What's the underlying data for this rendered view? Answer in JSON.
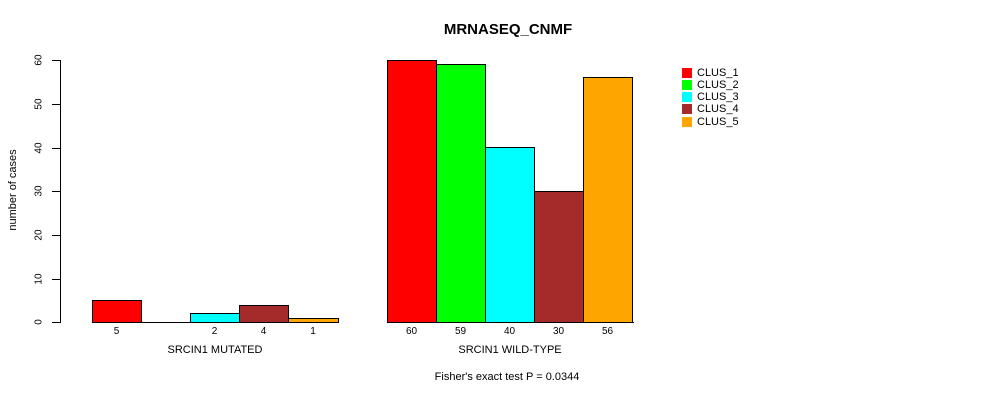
{
  "title": "MRNASEQ_CNMF",
  "y_axis": {
    "label": "number of cases",
    "ticks": [
      "0",
      "10",
      "20",
      "30",
      "40",
      "50",
      "60"
    ]
  },
  "chart_data": {
    "type": "bar",
    "title": "MRNASEQ_CNMF",
    "xlabel": "",
    "ylabel": "number of cases",
    "ylim": [
      0,
      60
    ],
    "grid": false,
    "legend_position": "right",
    "categories": [
      "SRCIN1 MUTATED",
      "SRCIN1 WILD-TYPE"
    ],
    "series": [
      {
        "name": "CLUS_1",
        "color": "#FF0000",
        "values": [
          5,
          60
        ]
      },
      {
        "name": "CLUS_2",
        "color": "#00FF00",
        "values": [
          0,
          59
        ]
      },
      {
        "name": "CLUS_3",
        "color": "#00FFFF",
        "values": [
          2,
          40
        ]
      },
      {
        "name": "CLUS_4",
        "color": "#A52A2A",
        "values": [
          4,
          30
        ]
      },
      {
        "name": "CLUS_5",
        "color": "#FFA500",
        "values": [
          1,
          56
        ]
      }
    ],
    "bar_labels": [
      [
        "5",
        "",
        "2",
        "4",
        "1"
      ],
      [
        "60",
        "59",
        "40",
        "30",
        "56"
      ]
    ],
    "annotation": "Fisher's exact test P = 0.0344"
  }
}
